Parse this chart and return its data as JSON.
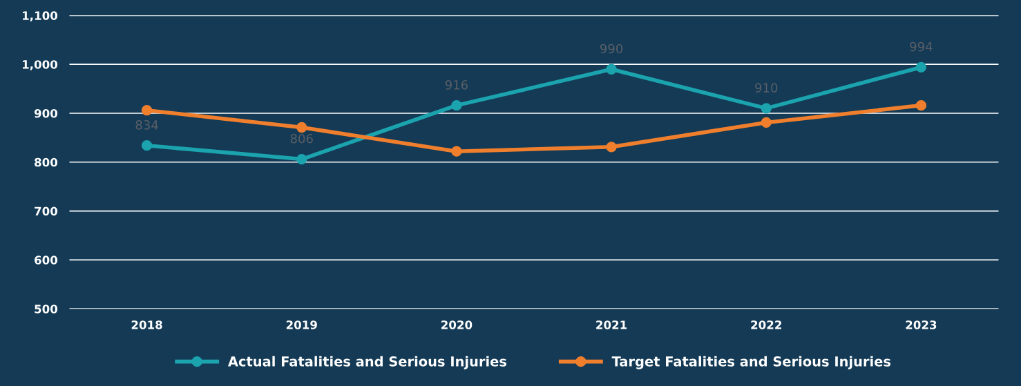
{
  "chart_data": {
    "type": "line",
    "categories": [
      "2018",
      "2019",
      "2020",
      "2021",
      "2022",
      "2023"
    ],
    "series": [
      {
        "name": "Actual Fatalities and Serious Injuries",
        "color": "#1ba3ae",
        "values": [
          834,
          806,
          916,
          990,
          910,
          994
        ],
        "value_labels": [
          "834",
          "806",
          "916",
          "990",
          "910",
          "994"
        ]
      },
      {
        "name": "Target Fatalities and Serious Injuries",
        "color": "#f07f2d",
        "values": [
          906,
          871,
          822,
          831,
          881,
          916
        ]
      }
    ],
    "ylim": [
      500,
      1100
    ],
    "yticks": [
      500,
      600,
      700,
      800,
      900,
      {
        "value": 1000,
        "label": "1,000"
      },
      {
        "value": 1100,
        "label": "1,100"
      }
    ],
    "grid": "y",
    "legend": "bottom",
    "marker": "circle",
    "line_style": "solid"
  }
}
